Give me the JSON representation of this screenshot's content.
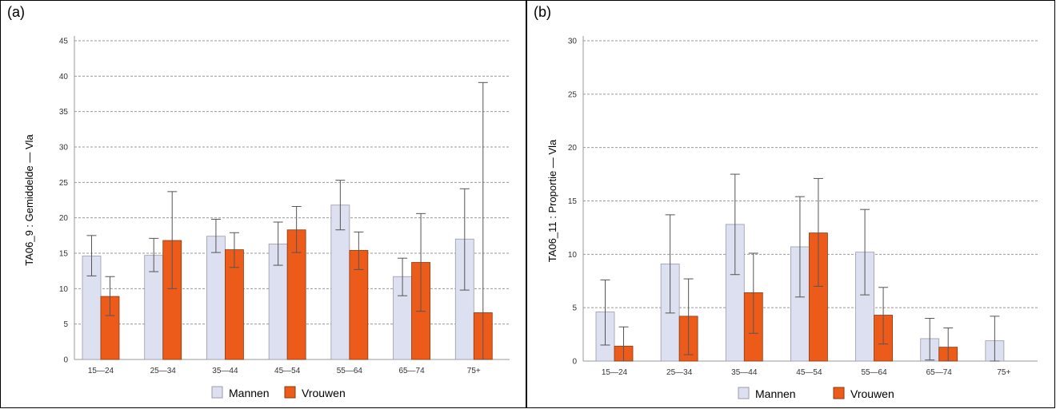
{
  "colors": {
    "mannen": "#dde0f0",
    "vrouwen": "#ec5b1a",
    "grid": "#999999",
    "axis": "#999999",
    "error": "#555555"
  },
  "chart_data": [
    {
      "panel_label": "(a)",
      "type": "bar",
      "ylabel": "TA06_9 : Gemiddelde — Vla",
      "ylim": [
        0,
        45
      ],
      "yticks": [
        0,
        5,
        10,
        15,
        20,
        25,
        30,
        35,
        40,
        45
      ],
      "grid": true,
      "legend": "bottom-center",
      "categories": [
        "15—24",
        "25—34",
        "35—44",
        "45—54",
        "55—64",
        "65—74",
        "75+"
      ],
      "series": [
        {
          "name": "Mannen",
          "values": [
            14.6,
            14.7,
            17.4,
            16.3,
            21.8,
            11.7,
            17.0
          ],
          "err_low": [
            11.8,
            12.4,
            15.1,
            13.3,
            18.3,
            9.0,
            9.8
          ],
          "err_high": [
            17.5,
            17.1,
            19.8,
            19.4,
            25.3,
            14.3,
            24.1
          ]
        },
        {
          "name": "Vrouwen",
          "values": [
            8.9,
            16.8,
            15.5,
            18.3,
            15.4,
            13.7,
            6.6
          ],
          "err_low": [
            6.2,
            10.0,
            13.0,
            15.1,
            12.7,
            6.8,
            0.0
          ],
          "err_high": [
            11.7,
            23.7,
            17.9,
            21.6,
            18.0,
            20.6,
            39.1
          ]
        }
      ]
    },
    {
      "panel_label": "(b)",
      "type": "bar",
      "ylabel": "TA06_11 : Proportie — Vla",
      "ylim": [
        0,
        30
      ],
      "yticks": [
        0,
        5,
        10,
        15,
        20,
        25,
        30
      ],
      "grid": true,
      "legend": "bottom-center",
      "categories": [
        "15—24",
        "25—34",
        "35—44",
        "45—54",
        "55—64",
        "65—74",
        "75+"
      ],
      "series": [
        {
          "name": "Mannen",
          "values": [
            4.6,
            9.1,
            12.8,
            10.7,
            10.2,
            2.1,
            1.9
          ],
          "err_low": [
            1.5,
            4.5,
            8.1,
            6.0,
            6.2,
            0.1,
            0.0
          ],
          "err_high": [
            7.6,
            13.7,
            17.5,
            15.4,
            14.2,
            4.0,
            4.2
          ]
        },
        {
          "name": "Vrouwen",
          "values": [
            1.4,
            4.2,
            6.4,
            12.0,
            4.3,
            1.3,
            null
          ],
          "err_low": [
            0.0,
            0.6,
            2.6,
            7.0,
            1.6,
            0.0,
            null
          ],
          "err_high": [
            3.2,
            7.7,
            10.1,
            17.1,
            6.9,
            3.1,
            null
          ]
        }
      ]
    }
  ]
}
